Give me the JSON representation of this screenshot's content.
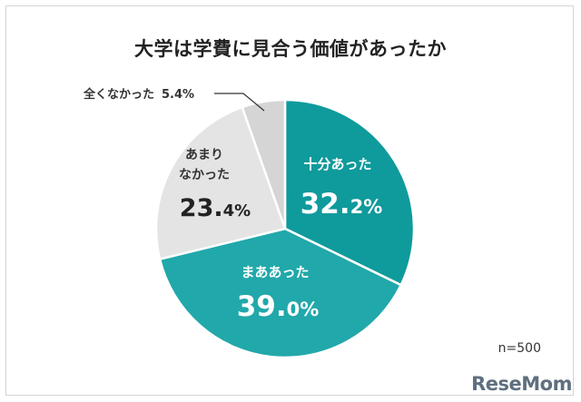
{
  "chart_data": {
    "type": "pie",
    "title": "大学は学費に見合う価値があったか",
    "slices": [
      {
        "label": "十分あった",
        "value": 32.2,
        "value_main": "32.",
        "value_small": "2%",
        "color": "#0f9a9c"
      },
      {
        "label": "まああった",
        "value": 39.0,
        "value_main": "39.",
        "value_small": "0%",
        "color": "#21a8aa"
      },
      {
        "label_lines": [
          "あまり",
          "なかった"
        ],
        "value": 23.4,
        "value_main": "23.",
        "value_small": "4%",
        "color": "#e4e4e4"
      },
      {
        "label": "全くなかった",
        "value": 5.4,
        "value_text": "5.4%",
        "color": "#d5d5d5"
      }
    ],
    "sample_size": "n=500",
    "start": "top",
    "direction": "clockwise"
  },
  "logo": "ReseMom"
}
